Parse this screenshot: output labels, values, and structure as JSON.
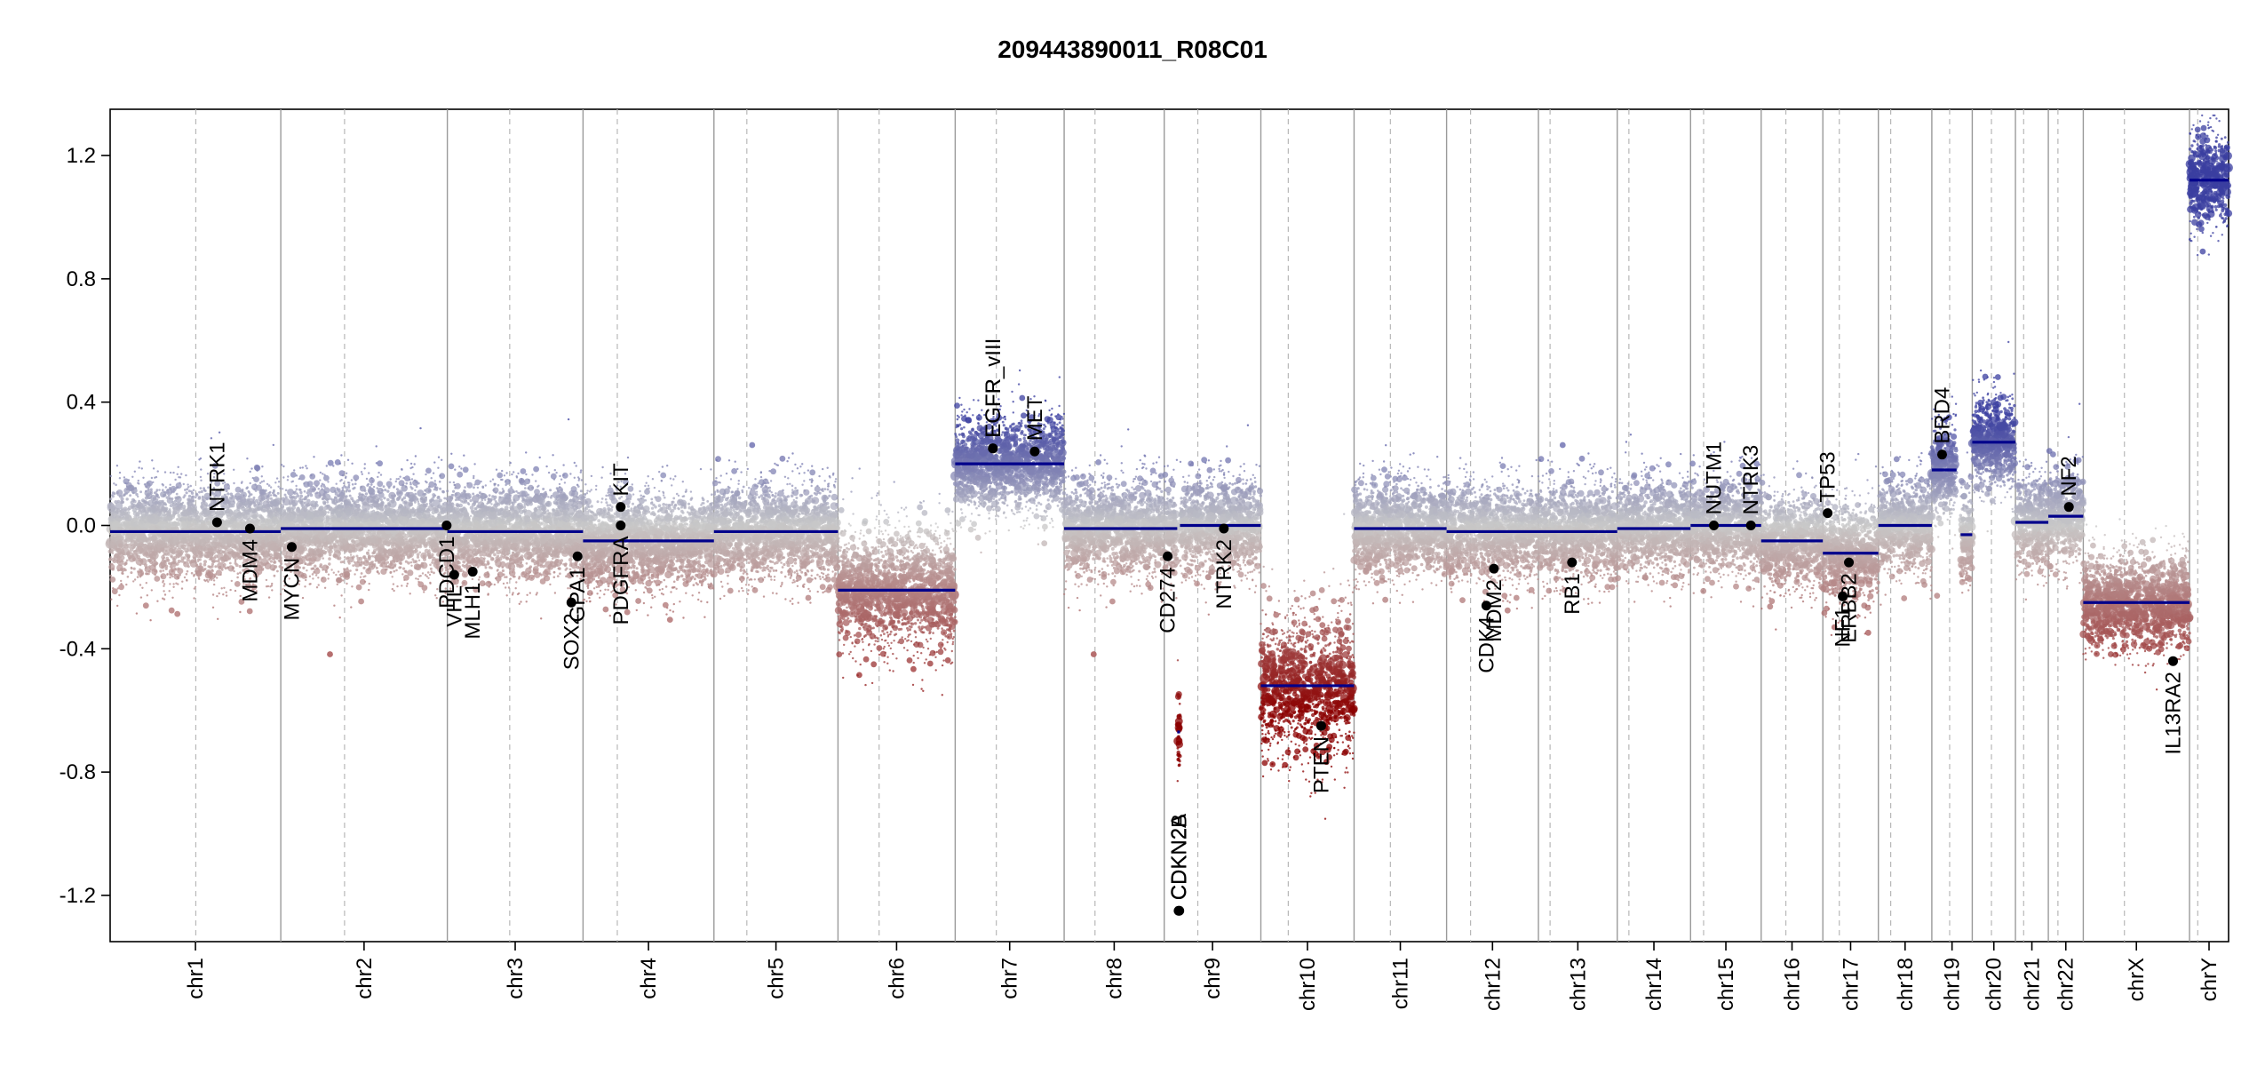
{
  "chart_data": {
    "type": "scatter",
    "title": "209443890011_R08C01",
    "xlabel": "",
    "ylabel": "",
    "ylim": [
      -1.35,
      1.35
    ],
    "y_ticks": [
      -1.2,
      -0.8,
      -0.4,
      0.0,
      0.4,
      0.8,
      1.2
    ],
    "y_tick_labels": [
      "-1.2",
      "-0.8",
      "-0.4",
      "0.0",
      "0.4",
      "0.8",
      "1.2"
    ],
    "grid": false,
    "chromosomes": [
      {
        "name": "chr1",
        "length": 249
      },
      {
        "name": "chr2",
        "length": 243
      },
      {
        "name": "chr3",
        "length": 198
      },
      {
        "name": "chr4",
        "length": 191
      },
      {
        "name": "chr5",
        "length": 181
      },
      {
        "name": "chr6",
        "length": 171
      },
      {
        "name": "chr7",
        "length": 159
      },
      {
        "name": "chr8",
        "length": 146
      },
      {
        "name": "chr9",
        "length": 141
      },
      {
        "name": "chr10",
        "length": 136
      },
      {
        "name": "chr11",
        "length": 135
      },
      {
        "name": "chr12",
        "length": 134
      },
      {
        "name": "chr13",
        "length": 115
      },
      {
        "name": "chr14",
        "length": 107
      },
      {
        "name": "chr15",
        "length": 103
      },
      {
        "name": "chr16",
        "length": 90
      },
      {
        "name": "chr17",
        "length": 81
      },
      {
        "name": "chr18",
        "length": 78
      },
      {
        "name": "chr19",
        "length": 59
      },
      {
        "name": "chr20",
        "length": 63
      },
      {
        "name": "chr21",
        "length": 48
      },
      {
        "name": "chr22",
        "length": 51
      },
      {
        "name": "chrX",
        "length": 155
      },
      {
        "name": "chrY",
        "length": 57
      }
    ],
    "centromeres": [
      125,
      93,
      91,
      50,
      48,
      60,
      60,
      45,
      49,
      40,
      53,
      35,
      17,
      17,
      19,
      36,
      24,
      18,
      26,
      28,
      12,
      14,
      60,
      12
    ],
    "segments": [
      {
        "chr": "chr1",
        "start": 0,
        "end": 249,
        "value": -0.02
      },
      {
        "chr": "chr2",
        "start": 0,
        "end": 243,
        "value": -0.01
      },
      {
        "chr": "chr3",
        "start": 0,
        "end": 198,
        "value": -0.02
      },
      {
        "chr": "chr4",
        "start": 0,
        "end": 191,
        "value": -0.05
      },
      {
        "chr": "chr5",
        "start": 0,
        "end": 181,
        "value": -0.02
      },
      {
        "chr": "chr6",
        "start": 0,
        "end": 171,
        "value": -0.21
      },
      {
        "chr": "chr7",
        "start": 0,
        "end": 159,
        "value": 0.2
      },
      {
        "chr": "chr8",
        "start": 0,
        "end": 146,
        "value": -0.01
      },
      {
        "chr": "chr9",
        "start": 0,
        "end": 19,
        "value": -0.01
      },
      {
        "chr": "chr9",
        "start": 19,
        "end": 23,
        "value": -0.67
      },
      {
        "chr": "chr9",
        "start": 23,
        "end": 141,
        "value": 0.0
      },
      {
        "chr": "chr10",
        "start": 0,
        "end": 136,
        "value": -0.52
      },
      {
        "chr": "chr11",
        "start": 0,
        "end": 135,
        "value": -0.01
      },
      {
        "chr": "chr12",
        "start": 0,
        "end": 134,
        "value": -0.02
      },
      {
        "chr": "chr13",
        "start": 0,
        "end": 115,
        "value": -0.02
      },
      {
        "chr": "chr14",
        "start": 0,
        "end": 107,
        "value": -0.01
      },
      {
        "chr": "chr15",
        "start": 0,
        "end": 103,
        "value": 0.0
      },
      {
        "chr": "chr16",
        "start": 0,
        "end": 90,
        "value": -0.05
      },
      {
        "chr": "chr17",
        "start": 0,
        "end": 81,
        "value": -0.09
      },
      {
        "chr": "chr18",
        "start": 0,
        "end": 78,
        "value": 0.0
      },
      {
        "chr": "chr19",
        "start": 0,
        "end": 26,
        "value": 0.18
      },
      {
        "chr": "chr19",
        "start": 26,
        "end": 36,
        "value": 0.18
      },
      {
        "chr": "chr19",
        "start": 42,
        "end": 59,
        "value": -0.03
      },
      {
        "chr": "chr20",
        "start": 0,
        "end": 63,
        "value": 0.27
      },
      {
        "chr": "chr21",
        "start": 0,
        "end": 48,
        "value": 0.01
      },
      {
        "chr": "chr22",
        "start": 0,
        "end": 51,
        "value": 0.03
      },
      {
        "chr": "chrX",
        "start": 0,
        "end": 155,
        "value": -0.25
      },
      {
        "chr": "chrY",
        "start": 0,
        "end": 57,
        "value": 1.12
      }
    ],
    "genes": [
      {
        "name": "NTRK1",
        "chr": "chr1",
        "pos": 156,
        "value": 0.01,
        "label_side": "up"
      },
      {
        "name": "MDM4",
        "chr": "chr1",
        "pos": 204,
        "value": -0.01,
        "label_side": "down"
      },
      {
        "name": "MYCN",
        "chr": "chr2",
        "pos": 16,
        "value": -0.07,
        "label_side": "down"
      },
      {
        "name": "PDCD1",
        "chr": "chr2",
        "pos": 242,
        "value": 0.0,
        "label_side": "down"
      },
      {
        "name": "VHL",
        "chr": "chr3",
        "pos": 10,
        "value": -0.16,
        "label_side": "down"
      },
      {
        "name": "MLH1",
        "chr": "chr3",
        "pos": 37,
        "value": -0.15,
        "label_side": "down"
      },
      {
        "name": "SOX2",
        "chr": "chr3",
        "pos": 181,
        "value": -0.25,
        "label_side": "down"
      },
      {
        "name": "GPA1",
        "chr": "chr3",
        "pos": 190,
        "value": -0.1,
        "label_side": "down"
      },
      {
        "name": "KIT",
        "chr": "chr4",
        "pos": 55,
        "value": 0.06,
        "label_side": "up"
      },
      {
        "name": "PDGFRA",
        "chr": "chr4",
        "pos": 55,
        "value": 0.0,
        "label_side": "down"
      },
      {
        "name": "EGFR",
        "chr": "chr7",
        "pos": 55,
        "value": 0.25,
        "label_side": "up"
      },
      {
        "name": "EGFR_vIII",
        "chr": "chr7",
        "pos": 55,
        "value": 0.25,
        "label_side": "up"
      },
      {
        "name": "MET",
        "chr": "chr7",
        "pos": 116,
        "value": 0.24,
        "label_side": "up"
      },
      {
        "name": "CD274",
        "chr": "chr9",
        "pos": 5,
        "value": -0.1,
        "label_side": "down"
      },
      {
        "name": "CDKN2A",
        "chr": "chr9",
        "pos": 21,
        "value": -1.25,
        "label_side": "up"
      },
      {
        "name": "CDKN2B",
        "chr": "chr9",
        "pos": 22,
        "value": -1.25,
        "label_side": "up"
      },
      {
        "name": "NTRK2",
        "chr": "chr9",
        "pos": 87,
        "value": -0.01,
        "label_side": "down"
      },
      {
        "name": "PTEN",
        "chr": "chr10",
        "pos": 88,
        "value": -0.65,
        "label_side": "down"
      },
      {
        "name": "CDK4",
        "chr": "chr12",
        "pos": 58,
        "value": -0.26,
        "label_side": "down"
      },
      {
        "name": "MDM2",
        "chr": "chr12",
        "pos": 69,
        "value": -0.14,
        "label_side": "down"
      },
      {
        "name": "RB1",
        "chr": "chr13",
        "pos": 49,
        "value": -0.12,
        "label_side": "down"
      },
      {
        "name": "NUTM1",
        "chr": "chr15",
        "pos": 34,
        "value": 0.0,
        "label_side": "up"
      },
      {
        "name": "NTRK3",
        "chr": "chr15",
        "pos": 88,
        "value": 0.0,
        "label_side": "up"
      },
      {
        "name": "TP53",
        "chr": "chr17",
        "pos": 7,
        "value": 0.04,
        "label_side": "up"
      },
      {
        "name": "NF1",
        "chr": "chr17",
        "pos": 29,
        "value": -0.23,
        "label_side": "down"
      },
      {
        "name": "ERBB2",
        "chr": "chr17",
        "pos": 38,
        "value": -0.12,
        "label_side": "down"
      },
      {
        "name": "BRD4",
        "chr": "chr19",
        "pos": 15,
        "value": 0.23,
        "label_side": "up"
      },
      {
        "name": "NF2",
        "chr": "chr22",
        "pos": 30,
        "value": 0.06,
        "label_side": "up"
      },
      {
        "name": "IL13RA2",
        "chr": "chrX",
        "pos": 131,
        "value": -0.44,
        "label_side": "down"
      }
    ]
  },
  "colors": {
    "gain": "#3b3fa0",
    "loss": "#8b0000",
    "neutral": "#c8c8c8",
    "segment": "#00008b",
    "gene_point": "#000000"
  }
}
